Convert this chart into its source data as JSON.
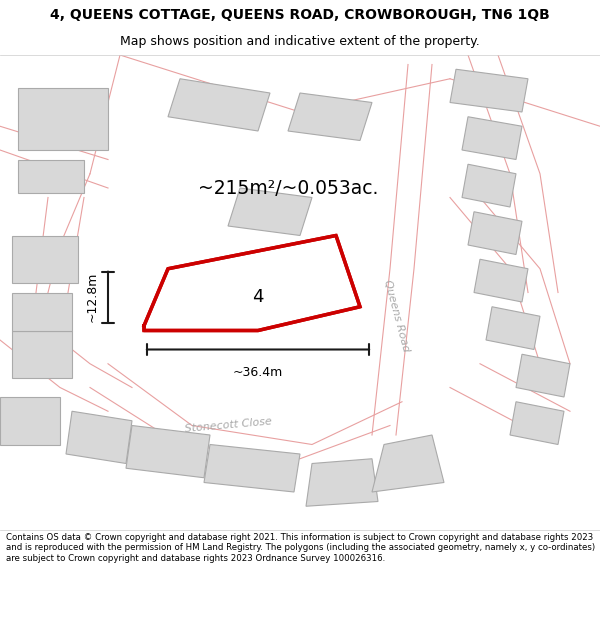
{
  "title_line1": "4, QUEENS COTTAGE, QUEENS ROAD, CROWBOROUGH, TN6 1QB",
  "title_line2": "Map shows position and indicative extent of the property.",
  "area_label": "~215m²/~0.053ac.",
  "width_label": "~36.4m",
  "height_label": "~12.8m",
  "plot_number": "4",
  "road_label1": "Queens Road",
  "road_label2": "Stonecott Close",
  "footer_text": "Contains OS data © Crown copyright and database right 2021. This information is subject to Crown copyright and database rights 2023 and is reproduced with the permission of HM Land Registry. The polygons (including the associated geometry, namely x, y co-ordinates) are subject to Crown copyright and database rights 2023 Ordnance Survey 100026316.",
  "bg_color": "#ffffff",
  "map_bg": "#f5f5f5",
  "building_fill": "#d8d8d8",
  "building_edge": "#aaaaaa",
  "road_outline": "#e8a0a0",
  "plot_color": "#cc0000",
  "plot_fill": "#ffffff",
  "dim_line_color": "#1a1a1a",
  "title_fontsize": 10,
  "subtitle_fontsize": 9,
  "label_fontsize": 14,
  "small_fontsize": 7.5,
  "map_xlim": [
    0,
    100
  ],
  "map_ylim": [
    0,
    100
  ]
}
